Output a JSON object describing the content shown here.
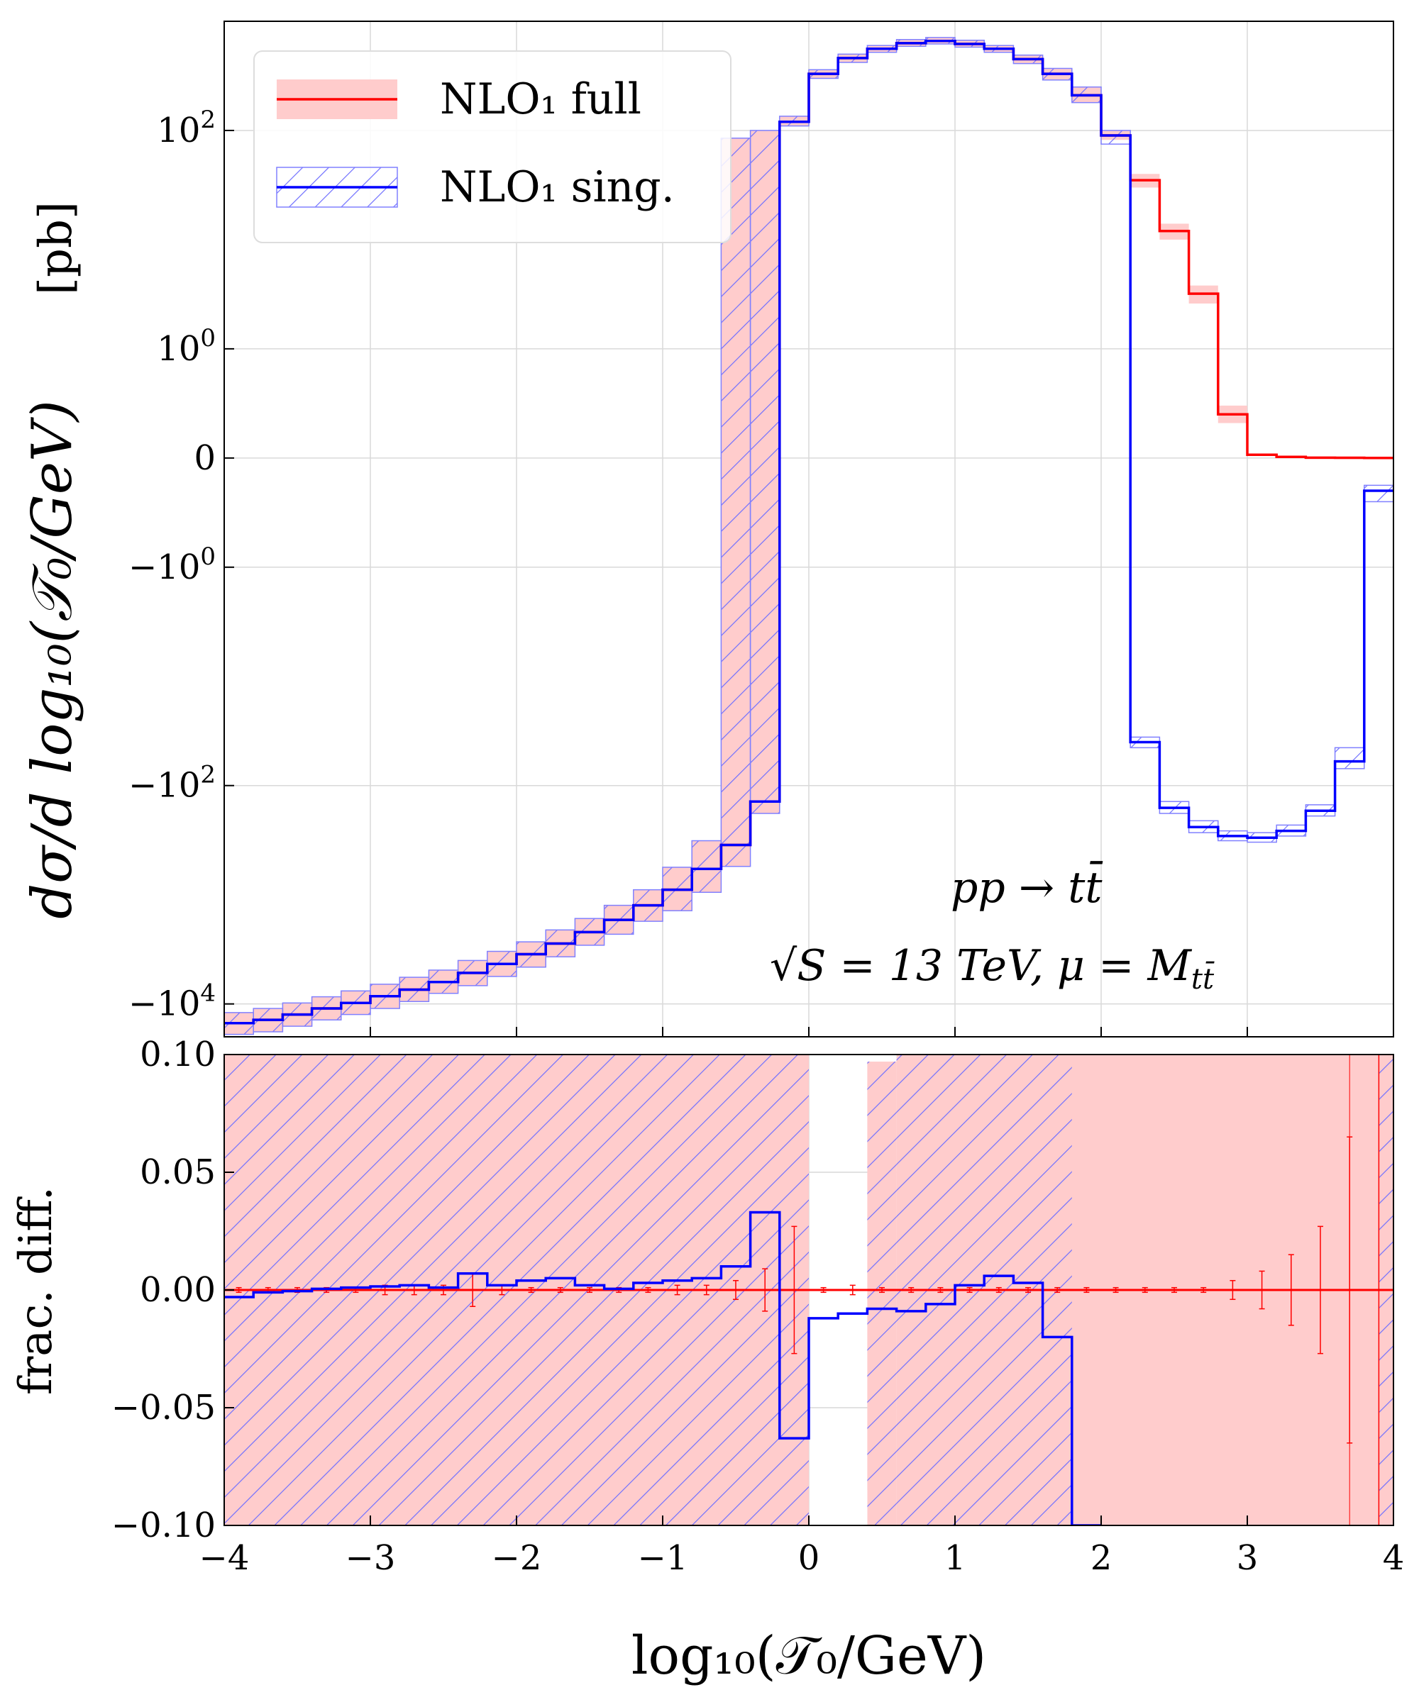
{
  "chart_data": [
    {
      "type": "line",
      "panel": "top",
      "title": "",
      "xlabel": "log10(T0/GeV)",
      "ylabel": "dσ/d log10(T0/GeV)  [pb]",
      "yscale": "symlog",
      "ylim": [
        -20000,
        1000
      ],
      "xlim": [
        -4,
        4
      ],
      "grid": true,
      "y_tick_values": [
        100,
        1,
        0,
        -1,
        -100,
        -10000
      ],
      "y_tick_labels": [
        "10^2",
        "10^0",
        "0",
        "−10^0",
        "−10^2",
        "−10^4"
      ],
      "bin_edges": [
        -4,
        -3.8,
        -3.6,
        -3.4,
        -3.2,
        -3,
        -2.8,
        -2.6,
        -2.4,
        -2.2,
        -2,
        -1.8,
        -1.6,
        -1.4,
        -1.2,
        -1,
        -0.8,
        -0.6,
        -0.4,
        -0.2,
        0,
        0.2,
        0.4,
        0.6,
        0.8,
        1,
        1.2,
        1.4,
        1.6,
        1.8,
        2,
        2.2,
        2.4,
        2.6,
        2.8,
        3,
        3.2,
        3.4,
        3.6,
        3.8,
        4
      ],
      "series": [
        {
          "name": "NLO1 full",
          "color": "#ff0000",
          "band_color": "#ffb3b3",
          "values": [
            -15000,
            -14000,
            -12500,
            -11000,
            -9800,
            -8500,
            -7400,
            -6300,
            -5200,
            -4300,
            -3500,
            -2800,
            -2200,
            -1700,
            -1250,
            -900,
            -580,
            -350,
            -140,
            120,
            330,
            460,
            560,
            630,
            660,
            620,
            560,
            450,
            330,
            210,
            90,
            35,
            12,
            3.2,
            0.4,
            0.03,
            0.01,
            0.003,
            0.002,
            0.001
          ],
          "band_low": [
            -19000,
            -18000,
            -16000,
            -14000,
            -12500,
            -11000,
            -9500,
            -8000,
            -6800,
            -5600,
            -4600,
            -3700,
            -2900,
            -2300,
            -1750,
            -1400,
            -950,
            -550,
            -180,
            110,
            300,
            420,
            520,
            590,
            620,
            580,
            520,
            410,
            290,
            180,
            82,
            30,
            10,
            2.6,
            0.32,
            0.02,
            0.008,
            0.002,
            0.001,
            0.0005
          ],
          "band_high": [
            -12000,
            -11000,
            -9800,
            -8600,
            -7600,
            -6600,
            -5700,
            -4900,
            -4000,
            -3300,
            -2700,
            -2100,
            -1650,
            -1250,
            -900,
            -560,
            -320,
            85,
            100,
            135,
            360,
            500,
            600,
            680,
            710,
            670,
            600,
            490,
            370,
            250,
            100,
            40,
            14,
            3.8,
            0.48,
            0.04,
            0.012,
            0.004,
            0.003,
            0.002
          ]
        },
        {
          "name": "NLO1 sing.",
          "color": "#0000ff",
          "band_color": "#8080ff",
          "values": [
            -15000,
            -14000,
            -12500,
            -11000,
            -9800,
            -8500,
            -7400,
            -6300,
            -5200,
            -4300,
            -3500,
            -2800,
            -2200,
            -1700,
            -1250,
            -900,
            -580,
            -350,
            -140,
            120,
            330,
            460,
            560,
            630,
            660,
            620,
            560,
            450,
            330,
            210,
            90,
            -40,
            -160,
            -240,
            -290,
            -300,
            -260,
            -170,
            -60,
            -0.3
          ],
          "band_low": [
            -19000,
            -18000,
            -16000,
            -14000,
            -12500,
            -11000,
            -9500,
            -8000,
            -6800,
            -5600,
            -4600,
            -3700,
            -2900,
            -2300,
            -1750,
            -1400,
            -950,
            -550,
            -180,
            110,
            300,
            420,
            520,
            590,
            620,
            580,
            520,
            410,
            290,
            180,
            75,
            -45,
            -180,
            -270,
            -320,
            -330,
            -290,
            -190,
            -70,
            -0.4
          ],
          "band_high": [
            -12000,
            -11000,
            -9800,
            -8600,
            -7600,
            -6600,
            -5700,
            -4900,
            -4000,
            -3300,
            -2700,
            -2100,
            -1650,
            -1250,
            -900,
            -560,
            -320,
            85,
            100,
            135,
            360,
            500,
            600,
            680,
            710,
            670,
            600,
            490,
            370,
            250,
            100,
            -36,
            -140,
            -210,
            -260,
            -270,
            -230,
            -150,
            -45,
            -0.25
          ]
        }
      ],
      "legend": [
        "NLO1 full",
        "NLO1 sing."
      ],
      "legend_position": "top-left",
      "annotations": [
        "pp → tt̄",
        "√S = 13 TeV, μ = M_tt̄"
      ]
    },
    {
      "type": "line",
      "panel": "bottom",
      "xlabel": "log10(T0/GeV)",
      "ylabel": "frac. diff.",
      "ylim": [
        -0.1,
        0.1
      ],
      "xlim": [
        -4,
        4
      ],
      "grid": true,
      "x_tick_values": [
        -4,
        -3,
        -2,
        -1,
        0,
        1,
        2,
        3,
        4
      ],
      "x_tick_labels": [
        "−4",
        "−3",
        "−2",
        "−1",
        "0",
        "1",
        "2",
        "3",
        "4"
      ],
      "y_tick_values": [
        0.1,
        0.05,
        0,
        -0.05,
        -0.1
      ],
      "y_tick_labels": [
        "0.10",
        "0.05",
        "0.00",
        "−0.05",
        "−0.10"
      ],
      "full_band": {
        "color": "#ffcccc",
        "regions": [
          [
            -4,
            0,
            -0.1,
            0.1
          ],
          [
            0.4,
            0.6,
            -0.1,
            0.097
          ],
          [
            0.6,
            4,
            -0.1,
            0.1
          ]
        ]
      },
      "sing_hatch": {
        "color": "#7070ff",
        "regions": [
          [
            -4,
            0,
            -0.1,
            0.1
          ],
          [
            0.6,
            1.8,
            -0.1,
            0.1
          ],
          [
            0.4,
            0.6,
            -0.1,
            0.097
          ],
          [
            3.9,
            4,
            -0.1,
            0.1
          ]
        ]
      },
      "sing_diff_values": [
        -0.003,
        -0.001,
        -0.0005,
        0.0005,
        0.001,
        0.0015,
        0.002,
        0.001,
        0.007,
        0.002,
        0.004,
        0.005,
        0.002,
        0.0005,
        0.003,
        0.004,
        0.005,
        0.01,
        0.033,
        -0.063,
        -0.012,
        -0.01,
        -0.008,
        -0.009,
        -0.006,
        0.002,
        0.006,
        0.003,
        -0.02,
        -0.1
      ],
      "full_err_centers": [
        -3.9,
        -3.7,
        -3.5,
        -3.3,
        -3.1,
        -2.9,
        -2.7,
        -2.5,
        -2.3,
        -2.1,
        -1.9,
        -1.7,
        -1.5,
        -1.3,
        -1.1,
        -0.9,
        -0.7,
        -0.5,
        -0.3,
        -0.1,
        0.1,
        0.3,
        0.5,
        0.7,
        0.9,
        1.1,
        1.3,
        1.5,
        1.7,
        1.9,
        2.1,
        2.3,
        2.5,
        2.7,
        2.9,
        3.1,
        3.3,
        3.5,
        3.7,
        3.9
      ],
      "full_err_sizes": [
        0.001,
        0.001,
        0.001,
        0.001,
        0.001,
        0.002,
        0.002,
        0.002,
        0.007,
        0.002,
        0.001,
        0.001,
        0.001,
        0.001,
        0.001,
        0.002,
        0.002,
        0.004,
        0.009,
        0.027,
        0.001,
        0.002,
        0.001,
        0.001,
        0.001,
        0.001,
        0.001,
        0.001,
        0.001,
        0.001,
        0.001,
        0.001,
        0.001,
        0.001,
        0.004,
        0.008,
        0.015,
        0.027,
        0.065,
        0.1
      ]
    }
  ],
  "labels": {
    "legend_full": "NLO₁ full",
    "legend_sing": "NLO₁ sing.",
    "annot_process": "pp → tt̄",
    "annot_energy": "√S = 13 TeV, μ = M",
    "annot_energy_sub": "tt̄",
    "top_ylabel": "dσ/d log₁₀(𝒯₀/GeV)",
    "top_ylabel_unit": "[pb]",
    "bottom_ylabel": "frac. diff.",
    "xlabel": "log₁₀(𝒯₀/GeV)"
  }
}
